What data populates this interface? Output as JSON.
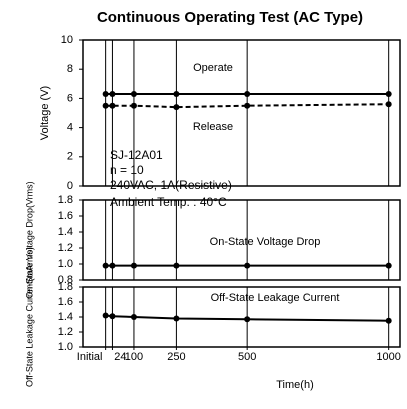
{
  "chart_data": [
    {
      "type": "line",
      "title": "Continuous Operating Test (AC Type)",
      "ylabel": "Voltage (V)",
      "x": [
        0,
        24,
        100,
        250,
        500,
        1000
      ],
      "xlim": [
        -80,
        1040
      ],
      "ylim": [
        0,
        10
      ],
      "yticks": [
        0,
        2,
        4,
        6,
        8,
        10
      ],
      "grid": true,
      "series": [
        {
          "name": "Operate",
          "color": "#000000",
          "dashed": false,
          "values": [
            6.3,
            6.3,
            6.3,
            6.3,
            6.3,
            6.3
          ]
        },
        {
          "name": "Release",
          "color": "#000000",
          "dashed": true,
          "values": [
            5.5,
            5.5,
            5.5,
            5.4,
            5.5,
            5.6
          ]
        }
      ],
      "annotations": [
        "SJ-12A01",
        "n = 10",
        "240VAC, 1A(Resistive)",
        "Ambient Temp.  :  40°C"
      ]
    },
    {
      "type": "line",
      "ylabel": "On-State Voltage Drop(Vrms)",
      "x": [
        0,
        24,
        100,
        250,
        500,
        1000
      ],
      "xlim": [
        -80,
        1040
      ],
      "ylim": [
        0.8,
        1.8
      ],
      "yticks": [
        0.8,
        {
          "value": 1,
          "label": "1.0"
        },
        1.2,
        1.4,
        1.6,
        1.8
      ],
      "grid": true,
      "series": [
        {
          "name": "On-State Voltage Drop",
          "color": "#000000",
          "dashed": false,
          "values": [
            0.98,
            0.98,
            0.98,
            0.98,
            0.98,
            0.98
          ]
        }
      ]
    },
    {
      "type": "line",
      "ylabel": "Off-State Leakage Current(mArms)",
      "xlabel": "Time(h)",
      "x": [
        0,
        24,
        100,
        250,
        500,
        1000
      ],
      "xlim": [
        -80,
        1040
      ],
      "xticks": [
        {
          "value": 0,
          "label": "Initial"
        },
        24,
        100,
        250,
        500,
        1000
      ],
      "ylim": [
        1,
        1.8
      ],
      "yticks": [
        {
          "value": 1,
          "label": "1.0"
        },
        1.2,
        1.4,
        1.6,
        1.8
      ],
      "grid": true,
      "series": [
        {
          "name": "Off-State Leakage Current",
          "color": "#000000",
          "dashed": false,
          "values": [
            1.42,
            1.41,
            1.4,
            1.38,
            1.37,
            1.35
          ]
        }
      ]
    }
  ]
}
